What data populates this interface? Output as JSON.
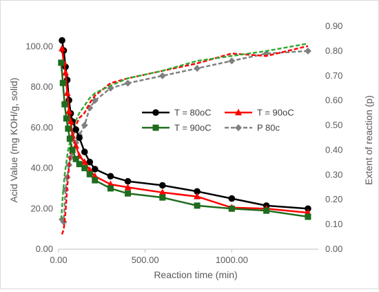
{
  "chart_data": {
    "type": "line",
    "xlabel": "Reaction time (min)",
    "ylabel": "Acid Value (mg KOH/g, solid)",
    "y2label": "Extent of reaction (p)",
    "xlim": [
      0,
      1500
    ],
    "ylim": [
      0,
      110
    ],
    "y2lim": [
      0,
      0.9
    ],
    "x_ticks": [
      0,
      500,
      1000
    ],
    "x_tick_labels": [
      "0.00",
      "500.00",
      "1000.00"
    ],
    "y_ticks": [
      0,
      20,
      40,
      60,
      80,
      100
    ],
    "y_tick_labels": [
      "0.00",
      "20.00",
      "40.00",
      "60.00",
      "80.00",
      "100.00"
    ],
    "y2_ticks": [
      0,
      0.1,
      0.2,
      0.3,
      0.4,
      0.5,
      0.6,
      0.7,
      0.8,
      0.9
    ],
    "y2_tick_labels": [
      "0.00",
      "0.10",
      "0.20",
      "0.30",
      "0.40",
      "0.50",
      "0.60",
      "0.70",
      "0.80",
      "0.90"
    ],
    "grid": false,
    "legend_placement": "center-right",
    "series": [
      {
        "name": "T = 80oC",
        "axis": "left",
        "color": "#000000",
        "marker": "circle",
        "dash": "solid",
        "x": [
          20,
          30,
          40,
          50,
          60,
          70,
          80,
          100,
          120,
          150,
          180,
          210,
          300,
          400,
          600,
          800,
          1000,
          1200,
          1440
        ],
        "y": [
          103,
          98,
          90,
          83.5,
          73.5,
          67,
          63,
          59,
          55,
          48,
          43,
          39.5,
          36,
          33.5,
          31.5,
          28.5,
          25,
          21.5,
          20
        ]
      },
      {
        "name": "T = 90oC",
        "axis": "left",
        "color": "#ff0000",
        "marker": "triangle",
        "dash": "solid",
        "x": [
          20,
          30,
          40,
          50,
          60,
          70,
          80,
          100,
          120,
          150,
          180,
          210,
          300,
          400,
          600,
          800,
          1000,
          1200,
          1440
        ],
        "y": [
          99,
          92,
          87,
          77,
          68,
          63,
          56,
          51,
          46,
          43,
          39,
          36,
          32,
          30.5,
          28,
          26,
          20.5,
          20,
          18
        ]
      },
      {
        "name": "T = 90oC",
        "axis": "left",
        "color": "#1e6c1e",
        "marker": "square",
        "dash": "solid",
        "x": [
          15,
          25,
          35,
          45,
          55,
          65,
          80,
          100,
          120,
          150,
          180,
          210,
          300,
          400,
          600,
          800,
          1000,
          1200,
          1440
        ],
        "y": [
          92,
          82,
          71.5,
          64.5,
          59.5,
          54.5,
          49,
          44.5,
          42,
          40,
          37,
          34,
          30,
          27.5,
          25.5,
          21.5,
          20,
          19,
          16
        ]
      },
      {
        "name": "P 80c",
        "axis": "right",
        "color": "#808080",
        "marker": "diamond",
        "dash": "dashed",
        "x": [
          20,
          30,
          40,
          50,
          60,
          70,
          80,
          100,
          120,
          150,
          180,
          210,
          300,
          400,
          600,
          800,
          1000,
          1200,
          1440
        ],
        "y": [
          0.12,
          0.11,
          0.24,
          0.29,
          0.34,
          0.37,
          0.39,
          0.43,
          0.46,
          0.5,
          0.57,
          0.6,
          0.65,
          0.67,
          0.7,
          0.73,
          0.76,
          0.79,
          0.8
        ]
      },
      {
        "axis": "right",
        "color": "#ff0000",
        "marker": "none",
        "dash": "dashed",
        "x": [
          20,
          30,
          40,
          50,
          60,
          70,
          80,
          100,
          120,
          150,
          180,
          210,
          300,
          400,
          600,
          800,
          1000,
          1200,
          1440
        ],
        "y": [
          0.06,
          0.08,
          0.15,
          0.25,
          0.33,
          0.4,
          0.45,
          0.5,
          0.53,
          0.55,
          0.59,
          0.62,
          0.67,
          0.69,
          0.72,
          0.75,
          0.79,
          0.78,
          0.82
        ]
      },
      {
        "axis": "right",
        "color": "#33a833",
        "marker": "none",
        "dash": "dashed",
        "x": [
          15,
          25,
          35,
          45,
          55,
          65,
          80,
          100,
          120,
          150,
          180,
          210,
          300,
          400,
          600,
          800,
          1000,
          1200,
          1440
        ],
        "y": [
          0.12,
          0.22,
          0.3,
          0.35,
          0.4,
          0.43,
          0.46,
          0.52,
          0.55,
          0.58,
          0.61,
          0.63,
          0.66,
          0.69,
          0.72,
          0.76,
          0.78,
          0.8,
          0.83
        ]
      }
    ]
  }
}
